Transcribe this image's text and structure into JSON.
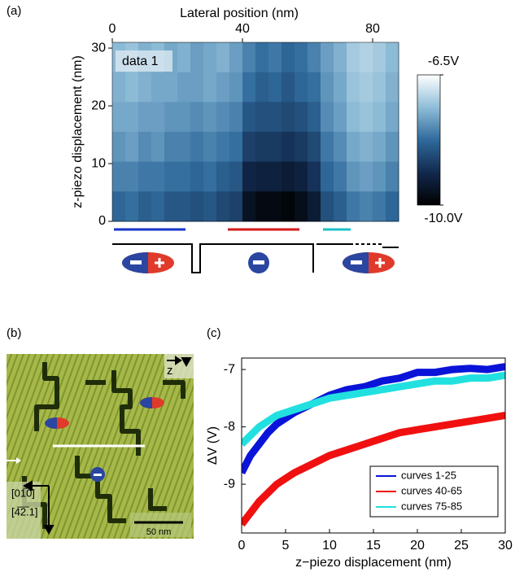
{
  "chart_data": [
    {
      "type": "heatmap",
      "panel": "(a)",
      "title": "Lateral position (nm)",
      "y_label": "z-piezo displacement (nm)",
      "annotation": "data 1",
      "xlim": [
        0,
        88
      ],
      "xticks": [
        0,
        40,
        80
      ],
      "ylim": [
        0,
        31
      ],
      "yticks": [
        0,
        10,
        20,
        30
      ],
      "clim": [
        -10,
        -6.5
      ],
      "cticks": [
        {
          "value": -6.5,
          "label": "-6.5V"
        },
        {
          "value": -10,
          "label": "-10.0V"
        }
      ],
      "colormap": [
        "#000000",
        "#12294d",
        "#2f6a9c",
        "#8fbdd8",
        "#ffffff"
      ],
      "z": [
        [
          -7.4,
          -7.3,
          -7.5,
          -7.4,
          -7.6,
          -7.5,
          -7.7,
          -7.6,
          -7.5,
          -7.7,
          -8.0,
          -8.2,
          -8.1,
          -8.3,
          -8.2,
          -8.0,
          -7.7,
          -7.5,
          -7.2,
          -7.1,
          -7.2,
          -7.4
        ],
        [
          -7.5,
          -7.4,
          -7.5,
          -7.6,
          -7.6,
          -7.7,
          -7.7,
          -7.6,
          -7.7,
          -7.8,
          -8.2,
          -8.4,
          -8.3,
          -8.5,
          -8.3,
          -8.2,
          -7.8,
          -7.6,
          -7.3,
          -7.2,
          -7.3,
          -7.5
        ],
        [
          -7.6,
          -7.6,
          -7.7,
          -7.7,
          -7.8,
          -7.8,
          -7.9,
          -7.8,
          -7.9,
          -8.0,
          -8.5,
          -8.6,
          -8.6,
          -8.7,
          -8.6,
          -8.4,
          -7.9,
          -7.7,
          -7.4,
          -7.3,
          -7.4,
          -7.6
        ],
        [
          -7.8,
          -7.7,
          -7.9,
          -7.8,
          -8.0,
          -8.0,
          -8.1,
          -8.0,
          -8.1,
          -8.2,
          -8.8,
          -8.9,
          -8.9,
          -9.0,
          -8.9,
          -8.7,
          -8.1,
          -7.9,
          -7.6,
          -7.5,
          -7.6,
          -7.8
        ],
        [
          -8.0,
          -8.0,
          -8.1,
          -8.1,
          -8.2,
          -8.2,
          -8.3,
          -8.2,
          -8.4,
          -8.5,
          -9.2,
          -9.3,
          -9.3,
          -9.4,
          -9.3,
          -9.0,
          -8.3,
          -8.1,
          -7.8,
          -7.7,
          -7.8,
          -8.0
        ],
        [
          -8.3,
          -8.2,
          -8.4,
          -8.3,
          -8.5,
          -8.5,
          -8.6,
          -8.5,
          -8.7,
          -8.8,
          -9.6,
          -9.8,
          -9.8,
          -9.9,
          -9.7,
          -9.4,
          -8.6,
          -8.4,
          -8.1,
          -8.0,
          -8.1,
          -8.3
        ]
      ]
    },
    {
      "type": "line",
      "panel": "(c)",
      "x_label": "z−piezo displacement (nm)",
      "y_label": "ΔV (V)",
      "xlim": [
        0,
        30
      ],
      "xticks": [
        0,
        5,
        10,
        15,
        20,
        25,
        30
      ],
      "ylim": [
        -9.85,
        -6.8
      ],
      "yticks": [
        -9,
        -8,
        -7
      ],
      "x": [
        0,
        1,
        2,
        3,
        4,
        5,
        6,
        8,
        10,
        12,
        14,
        16,
        18,
        20,
        22,
        24,
        26,
        28,
        30
      ],
      "series": [
        {
          "name": "curves 1-25",
          "color": "#0a14d8",
          "values": [
            -8.8,
            -8.5,
            -8.3,
            -8.1,
            -7.95,
            -7.85,
            -7.75,
            -7.6,
            -7.45,
            -7.35,
            -7.3,
            -7.2,
            -7.15,
            -7.05,
            -7.05,
            -7.0,
            -6.98,
            -7.0,
            -6.95
          ]
        },
        {
          "name": "curves 40-65",
          "color": "#f01010",
          "values": [
            -9.7,
            -9.5,
            -9.3,
            -9.15,
            -9.0,
            -8.9,
            -8.8,
            -8.65,
            -8.5,
            -8.4,
            -8.3,
            -8.2,
            -8.1,
            -8.05,
            -8.0,
            -7.95,
            -7.9,
            -7.85,
            -7.8
          ]
        },
        {
          "name": "curves 75-85",
          "color": "#22e0e0",
          "values": [
            -8.3,
            -8.15,
            -8.0,
            -7.9,
            -7.8,
            -7.75,
            -7.7,
            -7.6,
            -7.5,
            -7.45,
            -7.4,
            -7.35,
            -7.3,
            -7.25,
            -7.2,
            -7.2,
            -7.15,
            -7.15,
            -7.1
          ]
        }
      ]
    }
  ],
  "panel_b": {
    "label": "(b)",
    "axis": "z",
    "direction_1": "[01̅0]",
    "direction_2": "[4̅2̅.1]",
    "scale": "50 nm"
  }
}
